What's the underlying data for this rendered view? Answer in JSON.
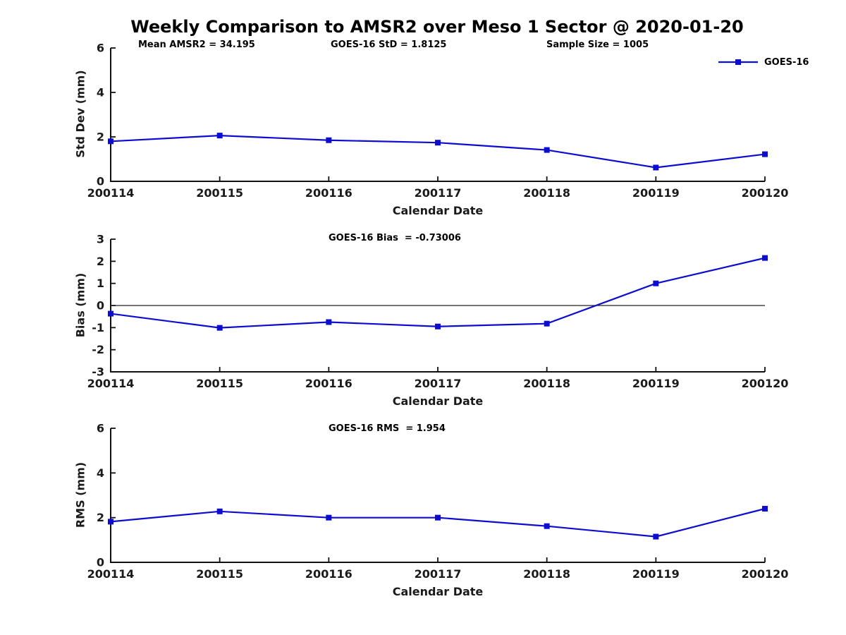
{
  "figure": {
    "title": "Weekly Comparison to AMSR2 over Meso 1 Sector @ 2020-01-20",
    "stats": {
      "mean_amsr2": "Mean AMSR2 = 34.195",
      "goes16_std": "GOES-16 StD = 1.8125",
      "sample_size": "Sample Size = 1005",
      "mean_amsr2_value": 34.195,
      "goes16_std_value": 1.8125,
      "sample_size_value": 1005
    },
    "legend": {
      "label": "GOES-16",
      "color": "#0d0dd0",
      "marker": "square",
      "position": "top-right"
    }
  },
  "chart_data": [
    {
      "type": "line",
      "title": "",
      "categories": [
        "200114",
        "200115",
        "200116",
        "200117",
        "200118",
        "200119",
        "200120"
      ],
      "series": [
        {
          "name": "GOES-16",
          "values": [
            1.8,
            2.06,
            1.85,
            1.74,
            1.41,
            0.62,
            1.22
          ]
        }
      ],
      "xlabel": "Calendar Date",
      "ylabel": "Std Dev (mm)",
      "ylim": [
        0,
        6
      ],
      "yticks": [
        0,
        2,
        4,
        6
      ],
      "grid": false,
      "zero_line": false,
      "line_color": "#0d0dd0",
      "marker": "square"
    },
    {
      "type": "line",
      "title": "GOES-16 Bias  = -0.73006",
      "bias_value": -0.73006,
      "categories": [
        "200114",
        "200115",
        "200116",
        "200117",
        "200118",
        "200119",
        "200120"
      ],
      "series": [
        {
          "name": "GOES-16",
          "values": [
            -0.37,
            -1.01,
            -0.75,
            -0.95,
            -0.82,
            1.0,
            2.15
          ]
        }
      ],
      "xlabel": "Calendar Date",
      "ylabel": "Bias (mm)",
      "ylim": [
        -3,
        3
      ],
      "yticks": [
        -3,
        -2,
        -1,
        0,
        1,
        2,
        3
      ],
      "grid": false,
      "zero_line": true,
      "line_color": "#0d0dd0",
      "marker": "square"
    },
    {
      "type": "line",
      "title": "GOES-16 RMS  = 1.954",
      "rms_value": 1.954,
      "categories": [
        "200114",
        "200115",
        "200116",
        "200117",
        "200118",
        "200119",
        "200120"
      ],
      "series": [
        {
          "name": "GOES-16",
          "values": [
            1.82,
            2.28,
            2.0,
            2.0,
            1.62,
            1.15,
            2.4
          ]
        }
      ],
      "xlabel": "Calendar Date",
      "ylabel": "RMS (mm)",
      "ylim": [
        0,
        6
      ],
      "yticks": [
        0,
        2,
        4,
        6
      ],
      "grid": false,
      "zero_line": false,
      "line_color": "#0d0dd0",
      "marker": "square"
    }
  ]
}
